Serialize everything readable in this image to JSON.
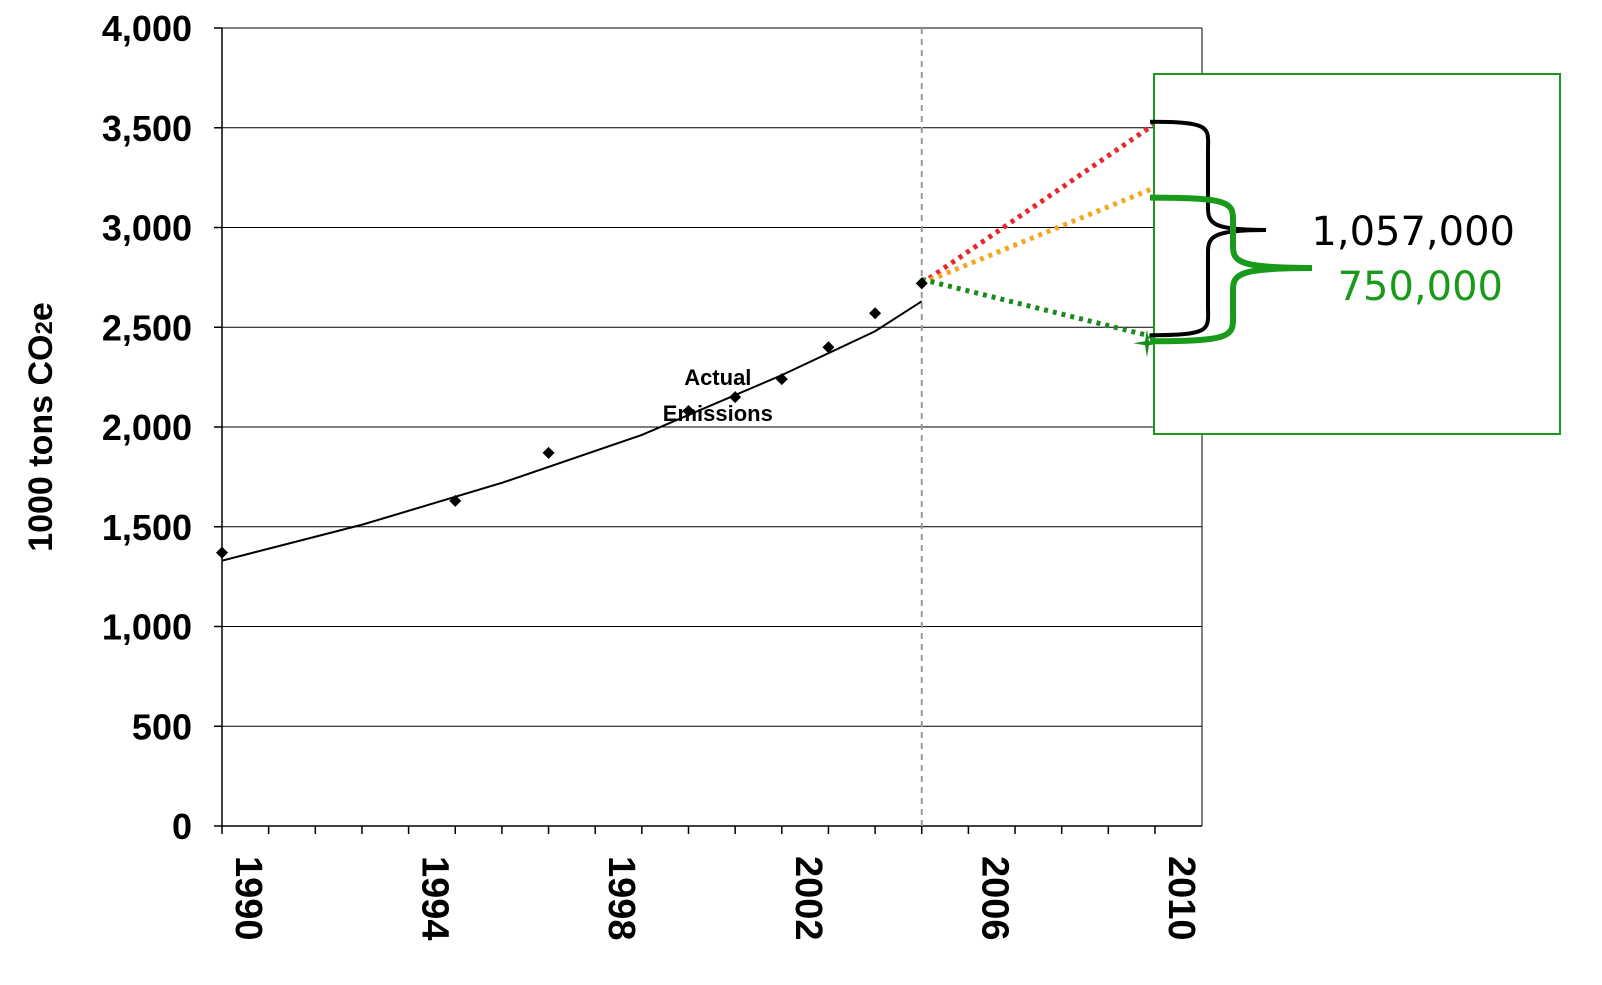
{
  "chart_data": {
    "type": "scatter",
    "title": "",
    "ylabel": "1000 tons CO2e",
    "xlabel": "",
    "xlim": [
      1990,
      2010.4
    ],
    "ylim": [
      0,
      4000
    ],
    "x_ticks": [
      1990,
      1994,
      1998,
      2002,
      2006,
      2010
    ],
    "y_ticks": [
      0,
      500,
      1000,
      1500,
      2000,
      2500,
      3000,
      3500,
      4000
    ],
    "y_tick_labels": [
      "0",
      "500",
      "1,000",
      "1,500",
      "2,000",
      "2,500",
      "3,000",
      "3,500",
      "4,000"
    ],
    "grid": "horizontal",
    "series": [
      {
        "role": "actual",
        "color": "#000000",
        "marker": "diamond",
        "points": [
          {
            "x": 1990,
            "y": 1370
          },
          {
            "x": 1995,
            "y": 1630
          },
          {
            "x": 1997,
            "y": 1870
          },
          {
            "x": 2000,
            "y": 2080
          },
          {
            "x": 2001,
            "y": 2150
          },
          {
            "x": 2002,
            "y": 2240
          },
          {
            "x": 2003,
            "y": 2400
          },
          {
            "x": 2004,
            "y": 2570
          },
          {
            "x": 2005,
            "y": 2720
          }
        ]
      },
      {
        "role": "trend",
        "color": "#000000",
        "style": "solid",
        "points": [
          {
            "x": 1990,
            "y": 1330
          },
          {
            "x": 1993,
            "y": 1510
          },
          {
            "x": 1996,
            "y": 1720
          },
          {
            "x": 1999,
            "y": 1960
          },
          {
            "x": 2002,
            "y": 2260
          },
          {
            "x": 2004,
            "y": 2480
          },
          {
            "x": 2005,
            "y": 2630
          }
        ]
      },
      {
        "role": "projection",
        "color": "#e8262b",
        "style": "dotted",
        "points": [
          {
            "x": 2005,
            "y": 2720
          },
          {
            "x": 2010,
            "y": 3520
          }
        ]
      },
      {
        "role": "projection",
        "color": "#f5a623",
        "style": "dotted",
        "points": [
          {
            "x": 2005,
            "y": 2720
          },
          {
            "x": 2010,
            "y": 3200
          }
        ]
      },
      {
        "role": "projection",
        "color": "#1a8a1a",
        "style": "dotted",
        "points": [
          {
            "x": 2005,
            "y": 2740
          },
          {
            "x": 2010,
            "y": 2450
          }
        ]
      }
    ],
    "vertical_reference_line": {
      "x": 2005,
      "color": "#999999",
      "style": "dashed"
    },
    "annotation": {
      "line1": "Actual",
      "line2": "Emissions",
      "x": 2000.5,
      "y": 1800
    },
    "callout": {
      "box_color": "#1a9a1a",
      "black_value": "1,057,000",
      "green_value": "750,000",
      "black_color": "#000000",
      "green_color": "#1a9a1a",
      "black_range": [
        2460,
        3530
      ],
      "green_range": [
        2430,
        3150
      ]
    }
  }
}
